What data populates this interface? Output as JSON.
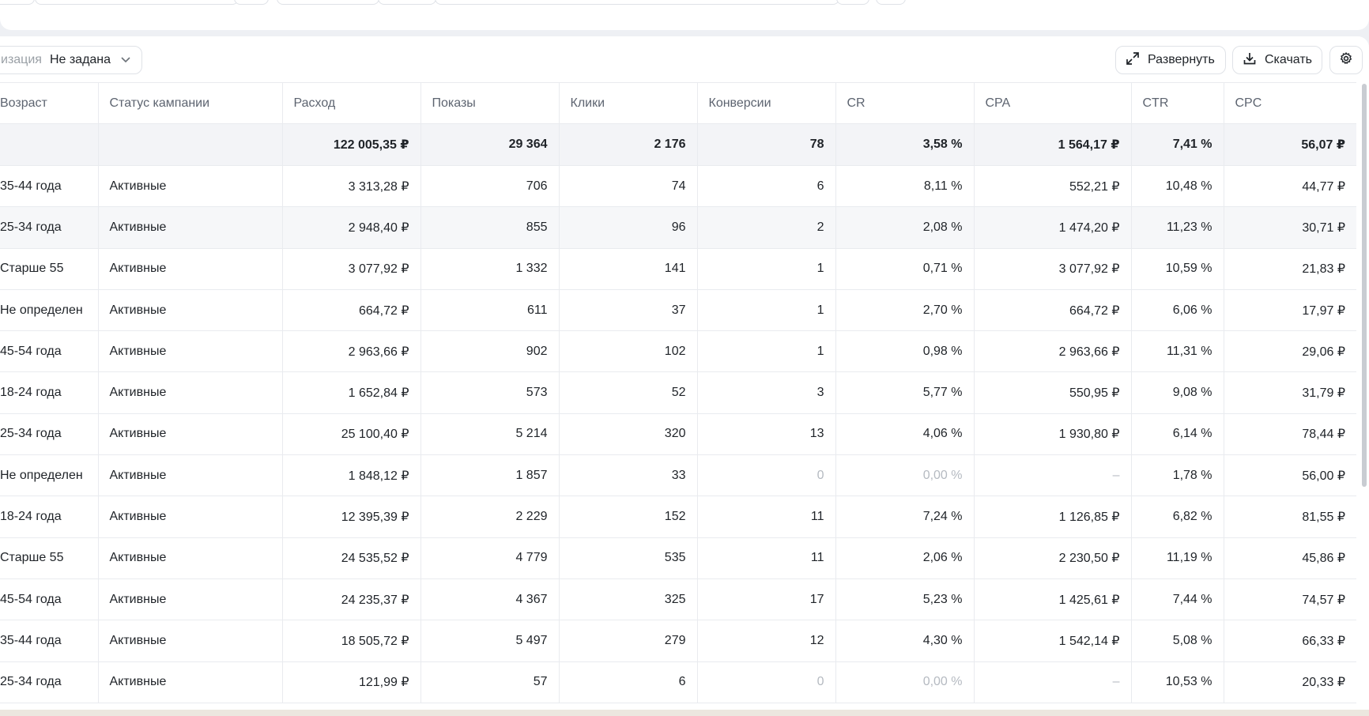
{
  "filter": {
    "label": "изация",
    "value": "Не задана"
  },
  "toolbar": {
    "expand_label": "Развернуть",
    "download_label": "Скачать"
  },
  "columns": [
    "Возраст",
    "Статус кампании",
    "Расход",
    "Показы",
    "Клики",
    "Конверсии",
    "CR",
    "CPA",
    "CTR",
    "CPC"
  ],
  "totals": [
    "",
    "",
    "122 005,35 ₽",
    "29 364",
    "2 176",
    "78",
    "3,58 %",
    "1 564,17 ₽",
    "7,41 %",
    "56,07 ₽"
  ],
  "rows": [
    [
      "35-44 года",
      "Активные",
      "3 313,28 ₽",
      "706",
      "74",
      "6",
      "8,11 %",
      "552,21 ₽",
      "10,48 %",
      "44,77 ₽"
    ],
    [
      "25-34 года",
      "Активные",
      "2 948,40 ₽",
      "855",
      "96",
      "2",
      "2,08 %",
      "1 474,20 ₽",
      "11,23 %",
      "30,71 ₽"
    ],
    [
      "Старше 55",
      "Активные",
      "3 077,92 ₽",
      "1 332",
      "141",
      "1",
      "0,71 %",
      "3 077,92 ₽",
      "10,59 %",
      "21,83 ₽"
    ],
    [
      "Не определен",
      "Активные",
      "664,72 ₽",
      "611",
      "37",
      "1",
      "2,70 %",
      "664,72 ₽",
      "6,06 %",
      "17,97 ₽"
    ],
    [
      "45-54 года",
      "Активные",
      "2 963,66 ₽",
      "902",
      "102",
      "1",
      "0,98 %",
      "2 963,66 ₽",
      "11,31 %",
      "29,06 ₽"
    ],
    [
      "18-24 года",
      "Активные",
      "1 652,84 ₽",
      "573",
      "52",
      "3",
      "5,77 %",
      "550,95 ₽",
      "9,08 %",
      "31,79 ₽"
    ],
    [
      "25-34 года",
      "Активные",
      "25 100,40 ₽",
      "5 214",
      "320",
      "13",
      "4,06 %",
      "1 930,80 ₽",
      "6,14 %",
      "78,44 ₽"
    ],
    [
      "Не определен",
      "Активные",
      "1 848,12 ₽",
      "1 857",
      "33",
      "0",
      "0,00 %",
      "–",
      "1,78 %",
      "56,00 ₽"
    ],
    [
      "18-24 года",
      "Активные",
      "12 395,39 ₽",
      "2 229",
      "152",
      "11",
      "7,24 %",
      "1 126,85 ₽",
      "6,82 %",
      "81,55 ₽"
    ],
    [
      "Старше 55",
      "Активные",
      "24 535,52 ₽",
      "4 779",
      "535",
      "11",
      "2,06 %",
      "2 230,50 ₽",
      "11,19 %",
      "45,86 ₽"
    ],
    [
      "45-54 года",
      "Активные",
      "24 235,37 ₽",
      "4 367",
      "325",
      "17",
      "5,23 %",
      "1 425,61 ₽",
      "7,44 %",
      "74,57 ₽"
    ],
    [
      "35-44 года",
      "Активные",
      "18 505,72 ₽",
      "5 497",
      "279",
      "12",
      "4,30 %",
      "1 542,14 ₽",
      "5,08 %",
      "66,33 ₽"
    ],
    [
      "25-34 года",
      "Активные",
      "121,99 ₽",
      "57",
      "6",
      "0",
      "0,00 %",
      "–",
      "10,53 %",
      "20,33 ₽"
    ]
  ],
  "highlight_row_index": 1
}
